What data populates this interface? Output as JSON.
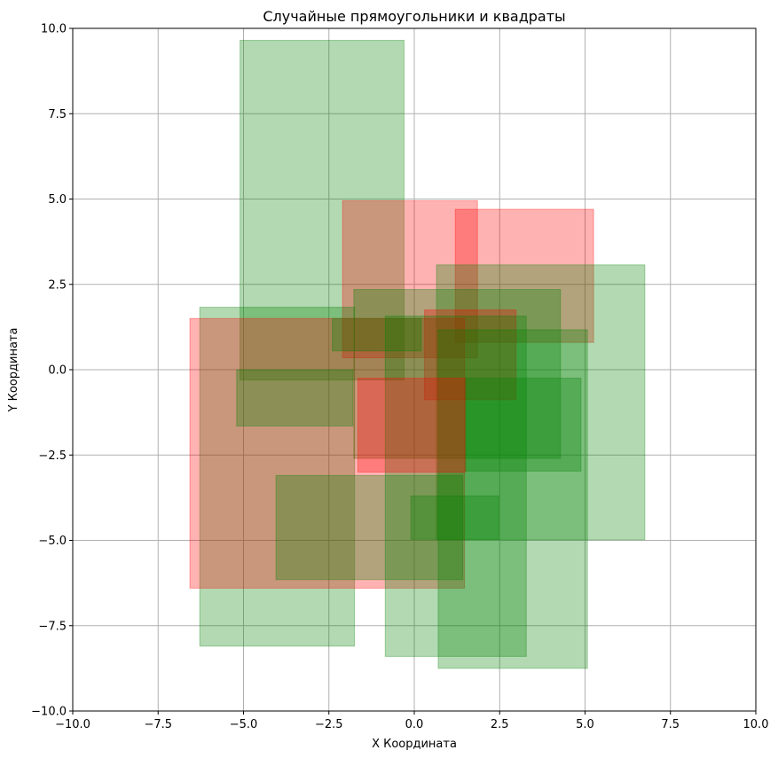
{
  "chart_data": {
    "type": "rectangles",
    "title": "Случайные прямоугольники и квадраты",
    "xlabel": "X Координата",
    "ylabel": "Y Координата",
    "xlim": [
      -10,
      10
    ],
    "ylim": [
      -10,
      10
    ],
    "xticks": [
      -10,
      -7.5,
      -5,
      -2.5,
      0,
      2.5,
      5,
      7.5,
      10
    ],
    "xtick_labels": [
      "−10.0",
      "−7.5",
      "−5.0",
      "−2.5",
      "0.0",
      "2.5",
      "5.0",
      "7.5",
      "10.0"
    ],
    "yticks": [
      -10,
      -7.5,
      -5,
      -2.5,
      0,
      2.5,
      5,
      7.5,
      10
    ],
    "ytick_labels": [
      "−10.0",
      "−7.5",
      "−5.0",
      "−2.5",
      "0.0",
      "2.5",
      "5.0",
      "7.5",
      "10.0"
    ],
    "grid": true,
    "colors": {
      "red": "#ff0000",
      "green": "#008000"
    },
    "alpha": 0.3,
    "rectangles": [
      {
        "color": "green",
        "x0": -5.1,
        "y0": -0.3,
        "x1": -0.3,
        "y1": 9.65
      },
      {
        "color": "red",
        "x0": -2.1,
        "y0": 0.35,
        "x1": 1.85,
        "y1": 4.95
      },
      {
        "color": "red",
        "x0": 1.2,
        "y0": 0.8,
        "x1": 5.25,
        "y1": 4.7
      },
      {
        "color": "green",
        "x0": 0.65,
        "y0": -4.98,
        "x1": 6.75,
        "y1": 3.07
      },
      {
        "color": "green",
        "x0": -1.77,
        "y0": -2.6,
        "x1": 4.28,
        "y1": 2.35
      },
      {
        "color": "green",
        "x0": -6.28,
        "y0": -8.1,
        "x1": -1.75,
        "y1": 1.83
      },
      {
        "color": "red",
        "x0": -6.57,
        "y0": -6.4,
        "x1": 1.47,
        "y1": 1.5
      },
      {
        "color": "green",
        "x0": -2.4,
        "y0": 0.55,
        "x1": 0.2,
        "y1": 1.5
      },
      {
        "color": "red",
        "x0": 0.3,
        "y0": -0.88,
        "x1": 2.98,
        "y1": 1.75
      },
      {
        "color": "green",
        "x0": -0.85,
        "y0": -8.4,
        "x1": 3.28,
        "y1": 1.57
      },
      {
        "color": "green",
        "x0": 0.7,
        "y0": -8.75,
        "x1": 5.07,
        "y1": 1.17
      },
      {
        "color": "green",
        "x0": -5.2,
        "y0": -1.65,
        "x1": -1.8,
        "y1": 0.0
      },
      {
        "color": "red",
        "x0": -1.65,
        "y0": -3.0,
        "x1": 1.5,
        "y1": -0.25
      },
      {
        "color": "green",
        "x0": 1.5,
        "y0": -2.97,
        "x1": 4.88,
        "y1": -0.25
      },
      {
        "color": "green",
        "x0": -4.05,
        "y0": -6.15,
        "x1": 1.42,
        "y1": -3.1
      },
      {
        "color": "green",
        "x0": -0.1,
        "y0": -4.97,
        "x1": 2.47,
        "y1": -3.7
      }
    ]
  }
}
